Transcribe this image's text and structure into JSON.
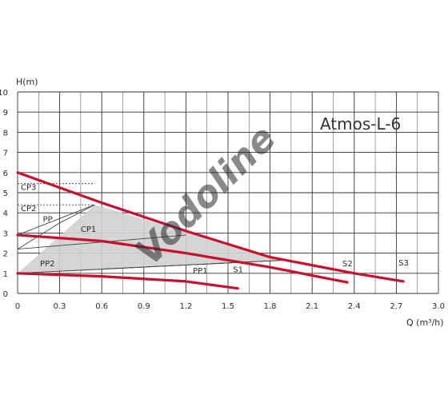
{
  "chart_data": {
    "type": "line",
    "title": "Atmos-L-6",
    "xlabel": "Q (m³/h)",
    "ylabel": "H(m)",
    "xlim": [
      0,
      3.0
    ],
    "ylim": [
      0,
      10
    ],
    "grid": true,
    "x_ticks": [
      "0",
      "0.3",
      "0.6",
      "0.9",
      "1.2",
      "1.5",
      "1.8",
      "2.1",
      "2.4",
      "2.7",
      "3.0"
    ],
    "y_ticks": [
      "0",
      "1",
      "2",
      "3",
      "4",
      "5",
      "6",
      "7",
      "8",
      "9",
      "10"
    ],
    "series": [
      {
        "name": "S3",
        "points": [
          [
            0,
            6.0
          ],
          [
            0.6,
            4.5
          ],
          [
            1.2,
            3.1
          ],
          [
            1.8,
            1.8
          ],
          [
            2.4,
            1.0
          ],
          [
            2.75,
            0.6
          ]
        ]
      },
      {
        "name": "S2",
        "points": [
          [
            0,
            2.9
          ],
          [
            0.6,
            2.6
          ],
          [
            1.2,
            2.0
          ],
          [
            1.8,
            1.3
          ],
          [
            2.35,
            0.55
          ]
        ]
      },
      {
        "name": "S1",
        "points": [
          [
            0,
            1.0
          ],
          [
            0.6,
            0.85
          ],
          [
            1.2,
            0.6
          ],
          [
            1.57,
            0.25
          ]
        ]
      }
    ],
    "control_curves": [
      {
        "name": "CP1",
        "points": [
          [
            0,
            2.9
          ],
          [
            0.55,
            4.4
          ]
        ]
      },
      {
        "name": "CP2",
        "points": [
          [
            0,
            2.2
          ],
          [
            0.3,
            3.5
          ],
          [
            0.55,
            4.4
          ]
        ]
      },
      {
        "name": "PP1",
        "points": [
          [
            0,
            1.0
          ],
          [
            1.9,
            1.65
          ]
        ]
      },
      {
        "name": "PP2",
        "points": [
          [
            0,
            1.0
          ],
          [
            1.9,
            1.65
          ]
        ]
      },
      {
        "name": "PP",
        "points": [
          [
            0,
            2.2
          ],
          [
            1.2,
            2.9
          ]
        ]
      }
    ],
    "region": [
      [
        0,
        1.0
      ],
      [
        0.55,
        4.4
      ],
      [
        1.9,
        1.65
      ]
    ],
    "reference_levels": [
      {
        "name": "CP3",
        "y": 5.45
      },
      {
        "name": "CP2",
        "y": 4.4
      }
    ],
    "colors": {
      "pump_curve": "#c8102e",
      "control_line": "#444444",
      "region_fill": "#d0d0d0",
      "grid": "#333333",
      "watermark": "#f3c6c6"
    }
  },
  "watermark": "Vodoline"
}
